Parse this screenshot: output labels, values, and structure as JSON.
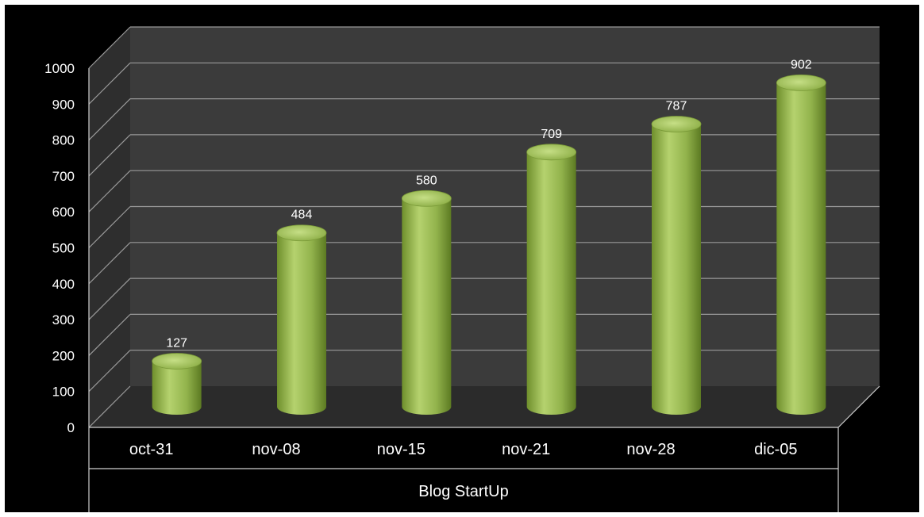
{
  "chart_data": {
    "type": "bar",
    "style": "3d-cylinder",
    "categories": [
      "oct-31",
      "nov-08",
      "nov-15",
      "nov-21",
      "nov-28",
      "dic-05"
    ],
    "values": [
      127,
      484,
      580,
      709,
      787,
      902
    ],
    "xlabel": "Blog StartUp",
    "ylim": [
      0,
      1000
    ],
    "yticks": [
      0,
      100,
      200,
      300,
      400,
      500,
      600,
      700,
      800,
      900,
      1000
    ],
    "grid": true,
    "legend": false,
    "data_labels": true
  },
  "colors": {
    "background": "#000000",
    "wall": "#3b3b3b",
    "floor": "#2b2b2b",
    "gridline": "#9a9a9a",
    "bar_light": "#b5d26e",
    "bar_mid": "#8fb049",
    "bar_dark": "#5c7a22",
    "text": "#ffffff"
  }
}
